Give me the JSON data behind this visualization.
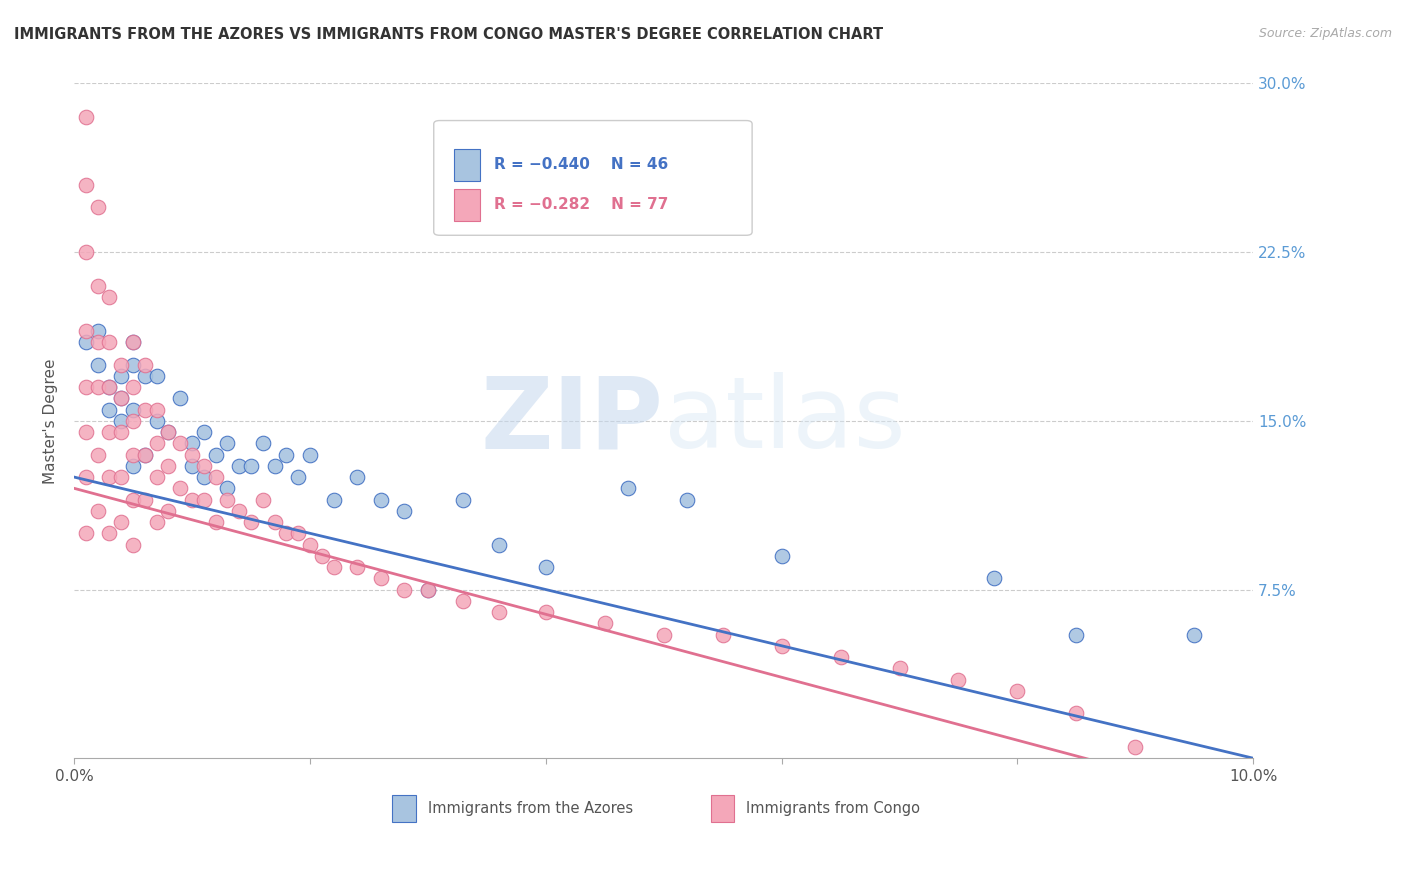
{
  "title": "IMMIGRANTS FROM THE AZORES VS IMMIGRANTS FROM CONGO MASTER'S DEGREE CORRELATION CHART",
  "source": "Source: ZipAtlas.com",
  "ylabel": "Master's Degree",
  "xlim": [
    0.0,
    0.1
  ],
  "ylim": [
    0.0,
    0.3
  ],
  "yticks": [
    0.0,
    0.075,
    0.15,
    0.225,
    0.3
  ],
  "ytick_labels_right": [
    "",
    "7.5%",
    "15.0%",
    "22.5%",
    "30.0%"
  ],
  "right_axis_color": "#5b9bd5",
  "grid_color": "#cccccc",
  "background_color": "#ffffff",
  "watermark_zip": "ZIP",
  "watermark_atlas": "atlas",
  "legend_r1": "R = −0.440",
  "legend_n1": "N = 46",
  "legend_r2": "R = −0.282",
  "legend_n2": "N = 77",
  "color_azores": "#a8c4e0",
  "color_congo": "#f4a7b9",
  "color_line_azores": "#4472c4",
  "color_line_congo": "#e07090",
  "azores_x": [
    0.001,
    0.002,
    0.002,
    0.003,
    0.003,
    0.004,
    0.004,
    0.004,
    0.005,
    0.005,
    0.005,
    0.005,
    0.006,
    0.006,
    0.007,
    0.007,
    0.008,
    0.009,
    0.01,
    0.01,
    0.011,
    0.011,
    0.012,
    0.013,
    0.013,
    0.014,
    0.015,
    0.016,
    0.017,
    0.018,
    0.019,
    0.02,
    0.022,
    0.024,
    0.026,
    0.028,
    0.03,
    0.033,
    0.036,
    0.04,
    0.047,
    0.052,
    0.06,
    0.078,
    0.085,
    0.095
  ],
  "azores_y": [
    0.185,
    0.175,
    0.19,
    0.165,
    0.155,
    0.17,
    0.16,
    0.15,
    0.185,
    0.175,
    0.155,
    0.13,
    0.17,
    0.135,
    0.17,
    0.15,
    0.145,
    0.16,
    0.14,
    0.13,
    0.145,
    0.125,
    0.135,
    0.14,
    0.12,
    0.13,
    0.13,
    0.14,
    0.13,
    0.135,
    0.125,
    0.135,
    0.115,
    0.125,
    0.115,
    0.11,
    0.075,
    0.115,
    0.095,
    0.085,
    0.12,
    0.115,
    0.09,
    0.08,
    0.055,
    0.055
  ],
  "congo_x": [
    0.001,
    0.001,
    0.001,
    0.001,
    0.001,
    0.001,
    0.001,
    0.001,
    0.002,
    0.002,
    0.002,
    0.002,
    0.002,
    0.002,
    0.003,
    0.003,
    0.003,
    0.003,
    0.003,
    0.003,
    0.004,
    0.004,
    0.004,
    0.004,
    0.004,
    0.005,
    0.005,
    0.005,
    0.005,
    0.005,
    0.005,
    0.006,
    0.006,
    0.006,
    0.006,
    0.007,
    0.007,
    0.007,
    0.007,
    0.008,
    0.008,
    0.008,
    0.009,
    0.009,
    0.01,
    0.01,
    0.011,
    0.011,
    0.012,
    0.012,
    0.013,
    0.014,
    0.015,
    0.016,
    0.017,
    0.018,
    0.019,
    0.02,
    0.021,
    0.022,
    0.024,
    0.026,
    0.028,
    0.03,
    0.033,
    0.036,
    0.04,
    0.045,
    0.05,
    0.055,
    0.06,
    0.065,
    0.07,
    0.075,
    0.08,
    0.085,
    0.09
  ],
  "congo_y": [
    0.285,
    0.255,
    0.225,
    0.19,
    0.165,
    0.145,
    0.125,
    0.1,
    0.245,
    0.21,
    0.185,
    0.165,
    0.135,
    0.11,
    0.205,
    0.185,
    0.165,
    0.145,
    0.125,
    0.1,
    0.175,
    0.16,
    0.145,
    0.125,
    0.105,
    0.185,
    0.165,
    0.15,
    0.135,
    0.115,
    0.095,
    0.175,
    0.155,
    0.135,
    0.115,
    0.155,
    0.14,
    0.125,
    0.105,
    0.145,
    0.13,
    0.11,
    0.14,
    0.12,
    0.135,
    0.115,
    0.13,
    0.115,
    0.125,
    0.105,
    0.115,
    0.11,
    0.105,
    0.115,
    0.105,
    0.1,
    0.1,
    0.095,
    0.09,
    0.085,
    0.085,
    0.08,
    0.075,
    0.075,
    0.07,
    0.065,
    0.065,
    0.06,
    0.055,
    0.055,
    0.05,
    0.045,
    0.04,
    0.035,
    0.03,
    0.02,
    0.005
  ]
}
